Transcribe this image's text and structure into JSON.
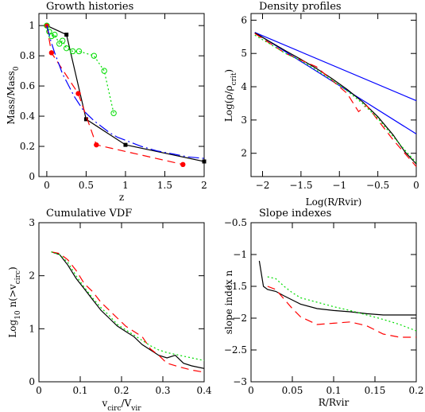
{
  "chart_data": [
    {
      "id": "growth",
      "type": "line",
      "title": "Growth histories",
      "xlabel": "z",
      "ylabel": {
        "base": "Mass/Mass",
        "sub": "0"
      },
      "xlim": [
        -0.1,
        2.0
      ],
      "ylim": [
        0,
        1.08
      ],
      "xticks": [
        0,
        0.5,
        1,
        1.5,
        2
      ],
      "xtick_labels": [
        "0",
        "0.5",
        "1",
        "1.5",
        "2"
      ],
      "yticks": [
        0,
        0.2,
        0.4,
        0.6,
        0.8,
        1
      ],
      "ytick_labels": [
        "0",
        "0.2",
        "0.4",
        "0.6",
        "0.8",
        "1"
      ],
      "series": [
        {
          "color": "#000000",
          "dash": "",
          "marker": "square",
          "x": [
            0,
            0.25,
            0.5,
            1.0,
            2.0
          ],
          "y": [
            1.0,
            0.94,
            0.38,
            0.21,
            0.1
          ]
        },
        {
          "color": "#ff0000",
          "dash": "10,6",
          "marker": "dot",
          "x": [
            0,
            0.06,
            0.4,
            0.63,
            1.73
          ],
          "y": [
            1.0,
            0.82,
            0.55,
            0.21,
            0.08
          ]
        },
        {
          "color": "#00dd00",
          "dash": "2,3",
          "marker": "circle",
          "x": [
            0,
            0.03,
            0.06,
            0.1,
            0.16,
            0.2,
            0.25,
            0.33,
            0.41,
            0.6,
            0.73,
            0.85
          ],
          "y": [
            1.0,
            0.96,
            0.93,
            0.94,
            0.88,
            0.9,
            0.85,
            0.83,
            0.83,
            0.8,
            0.7,
            0.42
          ]
        },
        {
          "color": "#0000ff",
          "dash": "14,4,2,4",
          "marker": "none",
          "x": [
            0,
            0.05,
            0.1,
            0.15,
            0.2,
            0.25,
            0.3,
            0.35,
            0.4,
            0.45,
            0.5,
            0.6,
            0.7,
            0.8,
            0.9,
            1.0,
            1.2,
            1.4,
            1.6,
            1.8,
            2.0
          ],
          "y": [
            1.0,
            0.9,
            0.82,
            0.75,
            0.68,
            0.63,
            0.58,
            0.53,
            0.49,
            0.45,
            0.42,
            0.37,
            0.33,
            0.29,
            0.26,
            0.24,
            0.2,
            0.17,
            0.15,
            0.13,
            0.12
          ]
        }
      ]
    },
    {
      "id": "density",
      "type": "line",
      "title": "Density profiles",
      "xlabel": "Log(R/Rvir)",
      "ylabel": {
        "base": "Log(ρ/ρ",
        "sub": "crit",
        "tail": ")"
      },
      "xlim": [
        -2.15,
        0
      ],
      "ylim": [
        1.3,
        6.2
      ],
      "xticks": [
        -2,
        -1.5,
        -1,
        -0.5,
        0
      ],
      "xtick_labels": [
        "−2",
        "−1.5",
        "−1",
        "−0.5",
        "0"
      ],
      "yticks": [
        2,
        3,
        4,
        5,
        6
      ],
      "ytick_labels": [
        "2",
        "3",
        "4",
        "5",
        "6"
      ],
      "series": [
        {
          "color": "#0000ff",
          "dash": "",
          "x": [
            -2.1,
            0
          ],
          "y": [
            5.63,
            3.58
          ]
        },
        {
          "color": "#0000ff",
          "dash": "",
          "x": [
            -2.1,
            0
          ],
          "y": [
            5.63,
            2.58
          ]
        },
        {
          "color": "#000000",
          "dash": "",
          "x": [
            -2.1,
            -1.9,
            -1.7,
            -1.5,
            -1.3,
            -1.1,
            -0.9,
            -0.7,
            -0.5,
            -0.3,
            -0.15,
            0
          ],
          "y": [
            5.62,
            5.35,
            5.08,
            4.82,
            4.55,
            4.25,
            3.92,
            3.55,
            3.1,
            2.55,
            2.05,
            1.68
          ]
        },
        {
          "color": "#ff0000",
          "dash": "10,6",
          "x": [
            -2.1,
            -1.9,
            -1.7,
            -1.5,
            -1.3,
            -1.1,
            -0.9,
            -0.75,
            -0.65,
            -0.5,
            -0.3,
            -0.15,
            0
          ],
          "y": [
            5.6,
            5.3,
            5.0,
            4.8,
            4.6,
            4.2,
            3.8,
            3.25,
            3.45,
            3.0,
            2.4,
            2.0,
            1.6
          ]
        },
        {
          "color": "#00dd00",
          "dash": "2,3",
          "x": [
            -2.1,
            -1.9,
            -1.7,
            -1.5,
            -1.3,
            -1.1,
            -0.9,
            -0.7,
            -0.5,
            -0.3,
            -0.15,
            0
          ],
          "y": [
            5.55,
            5.28,
            5.0,
            4.78,
            4.5,
            4.2,
            3.88,
            3.5,
            3.05,
            2.5,
            2.1,
            1.72
          ]
        }
      ]
    },
    {
      "id": "vdf",
      "type": "line",
      "title": "Cumulative VDF",
      "xlabel": {
        "base": "v",
        "sub": "circ",
        "mid": "/V",
        "sub2": "vir"
      },
      "ylabel": {
        "pre": "Log",
        "sub": "10",
        "mid": " n(>v",
        "sub2": "circ",
        "tail": ")"
      },
      "xlim": [
        0,
        0.4
      ],
      "ylim": [
        0,
        3
      ],
      "xticks": [
        0,
        0.1,
        0.2,
        0.3,
        0.4
      ],
      "xtick_labels": [
        "0",
        "0.1",
        "0.2",
        "0.3",
        "0.4"
      ],
      "yticks": [
        0,
        1,
        2,
        3
      ],
      "ytick_labels": [
        "0",
        "1",
        "2",
        "3"
      ],
      "series": [
        {
          "color": "#000000",
          "dash": "",
          "x": [
            0.03,
            0.05,
            0.07,
            0.09,
            0.11,
            0.13,
            0.15,
            0.17,
            0.19,
            0.21,
            0.23,
            0.25,
            0.27,
            0.29,
            0.31,
            0.33,
            0.35,
            0.37,
            0.4
          ],
          "y": [
            2.45,
            2.4,
            2.2,
            1.95,
            1.75,
            1.55,
            1.35,
            1.2,
            1.05,
            0.95,
            0.85,
            0.7,
            0.6,
            0.5,
            0.45,
            0.5,
            0.35,
            0.3,
            0.25
          ]
        },
        {
          "color": "#ff0000",
          "dash": "10,6",
          "x": [
            0.03,
            0.05,
            0.07,
            0.09,
            0.11,
            0.13,
            0.15,
            0.17,
            0.19,
            0.21,
            0.23,
            0.25,
            0.27,
            0.29,
            0.31,
            0.34,
            0.37,
            0.4
          ],
          "y": [
            2.45,
            2.42,
            2.3,
            2.1,
            1.85,
            1.7,
            1.5,
            1.35,
            1.2,
            1.05,
            0.95,
            0.85,
            0.62,
            0.5,
            0.35,
            0.28,
            0.22,
            0.18
          ]
        },
        {
          "color": "#00dd00",
          "dash": "2,3",
          "x": [
            0.03,
            0.05,
            0.07,
            0.09,
            0.11,
            0.13,
            0.15,
            0.17,
            0.19,
            0.21,
            0.23,
            0.25,
            0.27,
            0.29,
            0.31,
            0.34,
            0.37,
            0.4
          ],
          "y": [
            2.45,
            2.4,
            2.25,
            2.0,
            1.78,
            1.58,
            1.4,
            1.25,
            1.08,
            0.98,
            0.88,
            0.78,
            0.68,
            0.6,
            0.55,
            0.5,
            0.45,
            0.4
          ]
        }
      ]
    },
    {
      "id": "slope",
      "type": "line",
      "title": "Slope indexes",
      "xlabel": "R/Rvir",
      "ylabel": "slope index n",
      "xlim": [
        0,
        0.2
      ],
      "ylim": [
        -3,
        -0.5
      ],
      "xticks": [
        0,
        0.05,
        0.1,
        0.15,
        0.2
      ],
      "xtick_labels": [
        "0",
        "0.05",
        "0.1",
        "0.15",
        "0.2"
      ],
      "yticks": [
        -3,
        -2.5,
        -2,
        -1.5,
        -1,
        -0.5
      ],
      "ytick_labels": [
        "−3",
        "−2.5",
        "−2",
        "−1.5",
        "−1",
        "−0.5"
      ],
      "series": [
        {
          "color": "#000000",
          "dash": "",
          "x": [
            0.01,
            0.015,
            0.02,
            0.03,
            0.04,
            0.06,
            0.08,
            0.1,
            0.12,
            0.14,
            0.16,
            0.18,
            0.2
          ],
          "y": [
            -1.1,
            -1.5,
            -1.55,
            -1.58,
            -1.65,
            -1.78,
            -1.85,
            -1.88,
            -1.9,
            -1.93,
            -1.95,
            -1.95,
            -1.95
          ]
        },
        {
          "color": "#ff0000",
          "dash": "10,6",
          "x": [
            0.02,
            0.03,
            0.04,
            0.05,
            0.06,
            0.08,
            0.1,
            0.12,
            0.14,
            0.16,
            0.18,
            0.2
          ],
          "y": [
            -1.5,
            -1.55,
            -1.7,
            -1.85,
            -1.98,
            -2.1,
            -2.08,
            -2.06,
            -2.12,
            -2.25,
            -2.3,
            -2.3
          ]
        },
        {
          "color": "#00dd00",
          "dash": "2,3",
          "x": [
            0.02,
            0.03,
            0.04,
            0.05,
            0.06,
            0.08,
            0.1,
            0.12,
            0.14,
            0.16,
            0.18,
            0.2
          ],
          "y": [
            -1.35,
            -1.38,
            -1.5,
            -1.6,
            -1.68,
            -1.75,
            -1.82,
            -1.88,
            -1.95,
            -2.02,
            -2.1,
            -2.2
          ]
        }
      ]
    }
  ]
}
